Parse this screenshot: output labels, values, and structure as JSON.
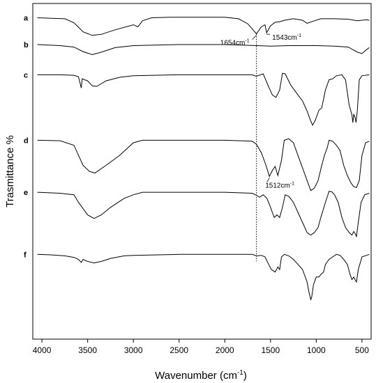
{
  "chart_data": {
    "type": "line",
    "xlabel": "Wavenumber (cm",
    "xlabel_sup": "-1",
    "xlabel_tail": ")",
    "ylabel": "Trasmittance %",
    "xlim": [
      4100,
      400
    ],
    "x_reversed": true,
    "x_ticks": [
      4000,
      3500,
      3000,
      2500,
      2000,
      1500,
      1000,
      500
    ],
    "y_ticks_shown": false,
    "grid": false,
    "reference_lines": [
      {
        "x": 1654,
        "style": "dotted"
      }
    ],
    "annotations": [
      {
        "text": "1654cm",
        "sup": "-1",
        "series": "a",
        "x": 1654
      },
      {
        "text": "1543cm",
        "sup": "-1",
        "series": "a",
        "x": 1543
      },
      {
        "text": "1512cm",
        "sup": "-1",
        "series": "d",
        "x": 1512
      }
    ],
    "series": [
      {
        "name": "a",
        "baseline": 0.03,
        "points": [
          [
            4050,
            0
          ],
          [
            3900,
            0.01
          ],
          [
            3750,
            0.02
          ],
          [
            3650,
            0.1
          ],
          [
            3550,
            0.28
          ],
          [
            3450,
            0.35
          ],
          [
            3350,
            0.33
          ],
          [
            3200,
            0.24
          ],
          [
            3000,
            0.14
          ],
          [
            2950,
            0.18
          ],
          [
            2900,
            0.06
          ],
          [
            2800,
            0
          ],
          [
            2600,
            -0.01
          ],
          [
            2300,
            -0.01
          ],
          [
            2000,
            -0.01
          ],
          [
            1850,
            0.02
          ],
          [
            1750,
            0.12
          ],
          [
            1700,
            0.22
          ],
          [
            1654,
            0.32
          ],
          [
            1600,
            0.18
          ],
          [
            1560,
            0.14
          ],
          [
            1543,
            0.3
          ],
          [
            1500,
            0.16
          ],
          [
            1450,
            0.09
          ],
          [
            1400,
            0.08
          ],
          [
            1350,
            0.05
          ],
          [
            1250,
            0.02
          ],
          [
            1150,
            0.05
          ],
          [
            1100,
            0.11
          ],
          [
            1050,
            0.08
          ],
          [
            950,
            0.02
          ],
          [
            800,
            0.02
          ],
          [
            650,
            0.03
          ],
          [
            550,
            0.06
          ],
          [
            450,
            0.04
          ],
          [
            420,
            0.05
          ]
        ]
      },
      {
        "name": "b",
        "baseline": 0.11,
        "points": [
          [
            4050,
            0
          ],
          [
            3800,
            0.02
          ],
          [
            3650,
            0.05
          ],
          [
            3550,
            0.14
          ],
          [
            3450,
            0.2
          ],
          [
            3350,
            0.15
          ],
          [
            3200,
            0.06
          ],
          [
            3000,
            0.02
          ],
          [
            2500,
            0.0
          ],
          [
            2000,
            0.0
          ],
          [
            1654,
            0.02
          ],
          [
            1500,
            0.03
          ],
          [
            1300,
            0.02
          ],
          [
            1000,
            0.02
          ],
          [
            800,
            0.03
          ],
          [
            650,
            0.05
          ],
          [
            550,
            0.15
          ],
          [
            500,
            0.18
          ],
          [
            450,
            0.1
          ],
          [
            420,
            0.06
          ]
        ]
      },
      {
        "name": "c",
        "baseline": 0.2,
        "points": [
          [
            4050,
            0
          ],
          [
            3800,
            0
          ],
          [
            3650,
            0.01
          ],
          [
            3600,
            0.04
          ],
          [
            3570,
            0.26
          ],
          [
            3560,
            0.08
          ],
          [
            3500,
            0.12
          ],
          [
            3450,
            0.22
          ],
          [
            3400,
            0.23
          ],
          [
            3300,
            0.12
          ],
          [
            3150,
            0.05
          ],
          [
            3000,
            0.02
          ],
          [
            2500,
            0
          ],
          [
            2000,
            0
          ],
          [
            1700,
            0
          ],
          [
            1654,
            0.03
          ],
          [
            1580,
            -0.02
          ],
          [
            1530,
            0.2
          ],
          [
            1480,
            0.4
          ],
          [
            1440,
            0.45
          ],
          [
            1400,
            0.3
          ],
          [
            1370,
            -0.03
          ],
          [
            1340,
            -0.02
          ],
          [
            1280,
            0.2
          ],
          [
            1200,
            0.4
          ],
          [
            1150,
            0.52
          ],
          [
            1100,
            0.72
          ],
          [
            1060,
            0.92
          ],
          [
            1040,
            1.0
          ],
          [
            1010,
            0.9
          ],
          [
            970,
            0.7
          ],
          [
            940,
            0.66
          ],
          [
            900,
            0.3
          ],
          [
            860,
            0.1
          ],
          [
            820,
            0.08
          ],
          [
            780,
            0.02
          ],
          [
            720,
            0
          ],
          [
            680,
            0.1
          ],
          [
            640,
            0.6
          ],
          [
            610,
            0.8
          ],
          [
            600,
            0.95
          ],
          [
            590,
            0.78
          ],
          [
            575,
            0.85
          ],
          [
            565,
            0.95
          ],
          [
            550,
            0.7
          ],
          [
            530,
            0.1
          ],
          [
            500,
            0.02
          ],
          [
            420,
            0
          ]
        ]
      },
      {
        "name": "d",
        "baseline": 0.395,
        "points": [
          [
            4050,
            0
          ],
          [
            3800,
            0.01
          ],
          [
            3650,
            0.1
          ],
          [
            3550,
            0.5
          ],
          [
            3480,
            0.62
          ],
          [
            3420,
            0.65
          ],
          [
            3300,
            0.5
          ],
          [
            3150,
            0.3
          ],
          [
            3000,
            0.05
          ],
          [
            2900,
            0
          ],
          [
            2500,
            0
          ],
          [
            2000,
            0
          ],
          [
            1700,
            0.02
          ],
          [
            1654,
            0.08
          ],
          [
            1600,
            0.25
          ],
          [
            1550,
            0.5
          ],
          [
            1512,
            0.72
          ],
          [
            1480,
            0.6
          ],
          [
            1450,
            0.52
          ],
          [
            1420,
            0.7
          ],
          [
            1380,
            0.4
          ],
          [
            1350,
            0
          ],
          [
            1300,
            -0.03
          ],
          [
            1250,
            0.05
          ],
          [
            1200,
            0.3
          ],
          [
            1150,
            0.55
          ],
          [
            1100,
            0.8
          ],
          [
            1060,
            1.0
          ],
          [
            1020,
            0.95
          ],
          [
            980,
            0.8
          ],
          [
            940,
            0.5
          ],
          [
            910,
            0.3
          ],
          [
            880,
            0.15
          ],
          [
            860,
            0.0
          ],
          [
            820,
            0.02
          ],
          [
            780,
            0.1
          ],
          [
            740,
            0.2
          ],
          [
            700,
            0.5
          ],
          [
            660,
            0.7
          ],
          [
            620,
            0.85
          ],
          [
            590,
            0.92
          ],
          [
            560,
            0.94
          ],
          [
            530,
            0.8
          ],
          [
            500,
            0.3
          ],
          [
            460,
            0.05
          ],
          [
            420,
            0.02
          ]
        ]
      },
      {
        "name": "e",
        "baseline": 0.55,
        "points": [
          [
            4050,
            0
          ],
          [
            3800,
            0.02
          ],
          [
            3650,
            0.05
          ],
          [
            3600,
            0.2
          ],
          [
            3560,
            0.3
          ],
          [
            3500,
            0.45
          ],
          [
            3430,
            0.52
          ],
          [
            3350,
            0.45
          ],
          [
            3250,
            0.3
          ],
          [
            3100,
            0.12
          ],
          [
            3000,
            0.05
          ],
          [
            2900,
            0
          ],
          [
            2500,
            0
          ],
          [
            2000,
            0
          ],
          [
            1700,
            0.02
          ],
          [
            1654,
            0.06
          ],
          [
            1620,
            0.1
          ],
          [
            1580,
            0.05
          ],
          [
            1540,
            0.12
          ],
          [
            1500,
            0.3
          ],
          [
            1460,
            0.5
          ],
          [
            1430,
            0.45
          ],
          [
            1400,
            0.5
          ],
          [
            1370,
            0.3
          ],
          [
            1340,
            0.05
          ],
          [
            1300,
            0.08
          ],
          [
            1250,
            0.2
          ],
          [
            1200,
            0.4
          ],
          [
            1150,
            0.6
          ],
          [
            1100,
            0.8
          ],
          [
            1060,
            0.85
          ],
          [
            1020,
            0.8
          ],
          [
            980,
            0.7
          ],
          [
            950,
            0.5
          ],
          [
            900,
            0.2
          ],
          [
            860,
            -0.02
          ],
          [
            830,
            -0.01
          ],
          [
            800,
            0.05
          ],
          [
            760,
            0.2
          ],
          [
            720,
            0.5
          ],
          [
            680,
            0.7
          ],
          [
            640,
            0.8
          ],
          [
            610,
            0.85
          ],
          [
            590,
            0.78
          ],
          [
            575,
            0.82
          ],
          [
            560,
            0.88
          ],
          [
            540,
            0.6
          ],
          [
            510,
            0.2
          ],
          [
            470,
            0.05
          ],
          [
            420,
            0.02
          ]
        ]
      },
      {
        "name": "f",
        "baseline": 0.735,
        "points": [
          [
            4050,
            0
          ],
          [
            3900,
            0.01
          ],
          [
            3750,
            0.03
          ],
          [
            3650,
            0.06
          ],
          [
            3600,
            0.1
          ],
          [
            3570,
            0.16
          ],
          [
            3550,
            0.1
          ],
          [
            3500,
            0.14
          ],
          [
            3430,
            0.17
          ],
          [
            3350,
            0.14
          ],
          [
            3250,
            0.08
          ],
          [
            3100,
            0.03
          ],
          [
            3000,
            0.02
          ],
          [
            2500,
            0
          ],
          [
            2000,
            0
          ],
          [
            1700,
            0
          ],
          [
            1654,
            0.03
          ],
          [
            1600,
            0.02
          ],
          [
            1560,
            0.05
          ],
          [
            1520,
            0.2
          ],
          [
            1490,
            0.3
          ],
          [
            1450,
            0.35
          ],
          [
            1420,
            0.25
          ],
          [
            1400,
            0.3
          ],
          [
            1380,
            0.05
          ],
          [
            1350,
            0
          ],
          [
            1300,
            0.03
          ],
          [
            1250,
            0.1
          ],
          [
            1200,
            0.2
          ],
          [
            1150,
            0.3
          ],
          [
            1100,
            0.55
          ],
          [
            1080,
            0.75
          ],
          [
            1060,
            0.9
          ],
          [
            1050,
            0.85
          ],
          [
            1030,
            0.6
          ],
          [
            1000,
            0.45
          ],
          [
            970,
            0.45
          ],
          [
            950,
            0.4
          ],
          [
            920,
            0.35
          ],
          [
            900,
            0.2
          ],
          [
            860,
            0.1
          ],
          [
            820,
            0.05
          ],
          [
            780,
            0.0
          ],
          [
            740,
            0.02
          ],
          [
            700,
            0.1
          ],
          [
            660,
            0.2
          ],
          [
            630,
            0.4
          ],
          [
            610,
            0.5
          ],
          [
            590,
            0.45
          ],
          [
            570,
            0.52
          ],
          [
            560,
            0.55
          ],
          [
            540,
            0.3
          ],
          [
            500,
            0.05
          ],
          [
            450,
            0.02
          ],
          [
            420,
            0
          ]
        ]
      }
    ]
  }
}
